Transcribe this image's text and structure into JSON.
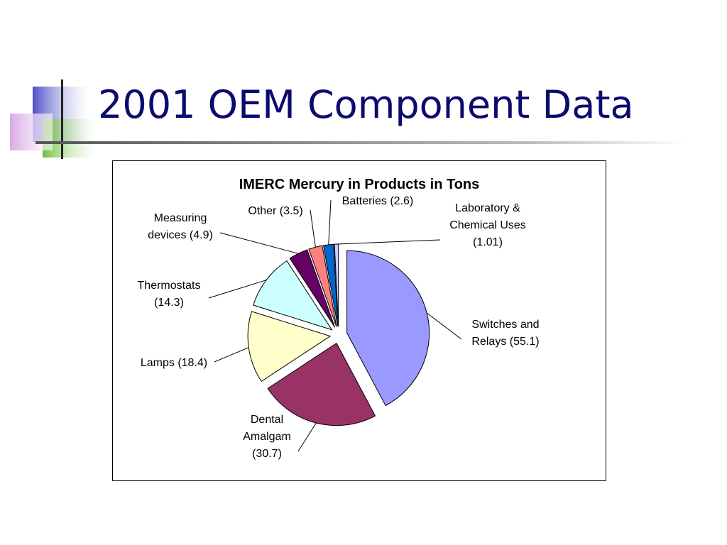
{
  "slide": {
    "title": "2001 OEM Component Data"
  },
  "theme": {
    "title_color": "#0b0b6e",
    "deco_blue": "#4b4fc8",
    "deco_green": "#6fbe3c",
    "deco_pink": "#d9a9e6"
  },
  "chart_data": {
    "type": "pie",
    "title": "IMERC Mercury in Products in Tons",
    "exploded": true,
    "slices": [
      {
        "name": "Switches and Relays",
        "value": 55.1,
        "label": [
          "Switches and",
          "Relays (55.1)"
        ],
        "color": "#9999ff"
      },
      {
        "name": "Dental Amalgam",
        "value": 30.7,
        "label": [
          "Dental",
          "Amalgam",
          "(30.7)"
        ],
        "color": "#993366"
      },
      {
        "name": "Lamps",
        "value": 18.4,
        "label": [
          "Lamps (18.4)"
        ],
        "color": "#ffffcc"
      },
      {
        "name": "Thermostats",
        "value": 14.3,
        "label": [
          "Thermostats",
          "(14.3)"
        ],
        "color": "#ccffff"
      },
      {
        "name": "Measuring devices",
        "value": 4.9,
        "label": [
          "Measuring",
          "devices (4.9)"
        ],
        "color": "#660066"
      },
      {
        "name": "Other",
        "value": 3.5,
        "label": [
          "Other (3.5)"
        ],
        "color": "#ff8080"
      },
      {
        "name": "Batteries",
        "value": 2.6,
        "label": [
          "Batteries (2.6)"
        ],
        "color": "#0066cc"
      },
      {
        "name": "Laboratory & Chemical Uses",
        "value": 1.01,
        "label": [
          "Laboratory &",
          "Chemical Uses",
          "(1.01)"
        ],
        "color": "#ccccff"
      }
    ]
  }
}
